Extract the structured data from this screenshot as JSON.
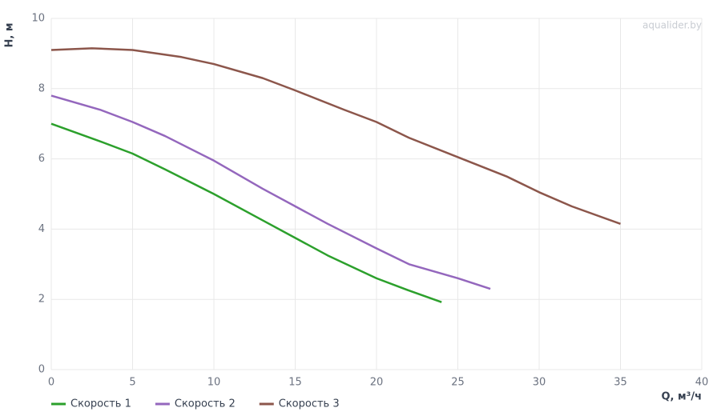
{
  "chart_data": {
    "type": "line",
    "y_label": "H, м",
    "x_label": "Q, м³/ч",
    "watermark": "aqualider.by",
    "xlim": [
      0,
      40
    ],
    "xticks": [
      0,
      5,
      10,
      15,
      20,
      25,
      30,
      35,
      40
    ],
    "ylim": [
      0,
      10
    ],
    "yticks": [
      0,
      2,
      4,
      6,
      8,
      10
    ],
    "grid": true,
    "series": [
      {
        "name": "Скорость 1",
        "color": "#2ca02c",
        "x": [
          0,
          3,
          5,
          7,
          10,
          13,
          15,
          17,
          20,
          22,
          24
        ],
        "values": [
          7.0,
          6.5,
          6.15,
          5.7,
          5.0,
          4.25,
          3.75,
          3.25,
          2.6,
          2.25,
          1.92
        ]
      },
      {
        "name": "Скорость 2",
        "color": "#9467bd",
        "x": [
          0,
          3,
          5,
          7,
          10,
          13,
          15,
          17,
          20,
          22,
          25,
          27
        ],
        "values": [
          7.8,
          7.4,
          7.05,
          6.65,
          5.95,
          5.15,
          4.65,
          4.15,
          3.45,
          3.0,
          2.6,
          2.3
        ]
      },
      {
        "name": "Скорость 3",
        "color": "#8c564b",
        "x": [
          0,
          2.5,
          5,
          8,
          10,
          13,
          15,
          18,
          20,
          22,
          25,
          28,
          30,
          32,
          35
        ],
        "values": [
          9.1,
          9.15,
          9.1,
          8.9,
          8.7,
          8.3,
          7.95,
          7.4,
          7.05,
          6.6,
          6.05,
          5.5,
          5.05,
          4.65,
          4.15
        ]
      }
    ]
  }
}
